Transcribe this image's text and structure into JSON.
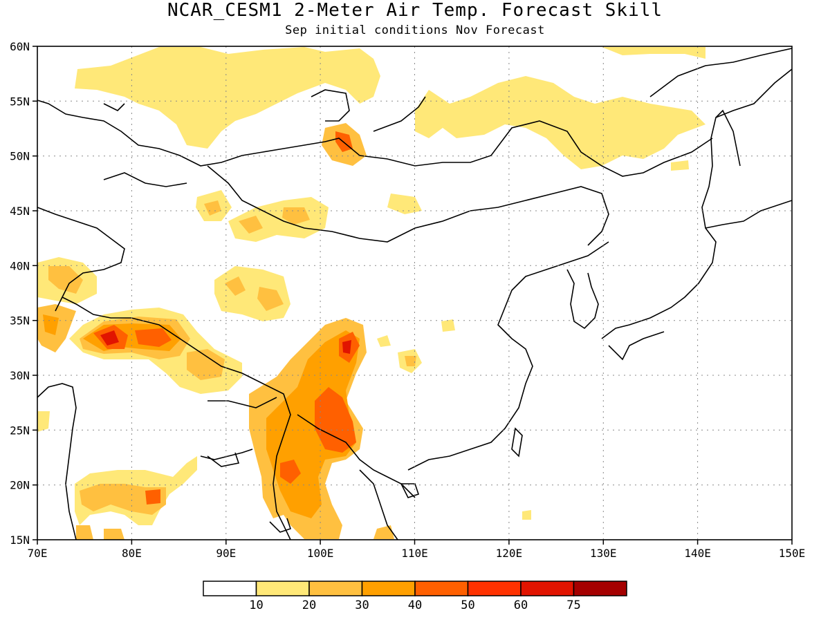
{
  "title": "NCAR_CESM1 2-Meter Air Temp. Forecast Skill",
  "subtitle": "Sep initial conditions  Nov Forecast",
  "axes": {
    "lon_min": 70,
    "lon_max": 150,
    "lat_min": 15,
    "lat_max": 60,
    "lon_ticks": [
      "70E",
      "80E",
      "90E",
      "100E",
      "110E",
      "120E",
      "130E",
      "140E",
      "150E"
    ],
    "lat_ticks": [
      "15N",
      "20N",
      "25N",
      "30N",
      "35N",
      "40N",
      "45N",
      "50N",
      "55N",
      "60N"
    ],
    "grid": "dotted"
  },
  "colorbar": {
    "labels": [
      "10",
      "20",
      "30",
      "40",
      "50",
      "60",
      "75"
    ],
    "colors": [
      "#ffffff",
      "#ffe878",
      "#ffc040",
      "#ffa000",
      "#ff6000",
      "#ff3200",
      "#e11400",
      "#a50000"
    ]
  }
}
